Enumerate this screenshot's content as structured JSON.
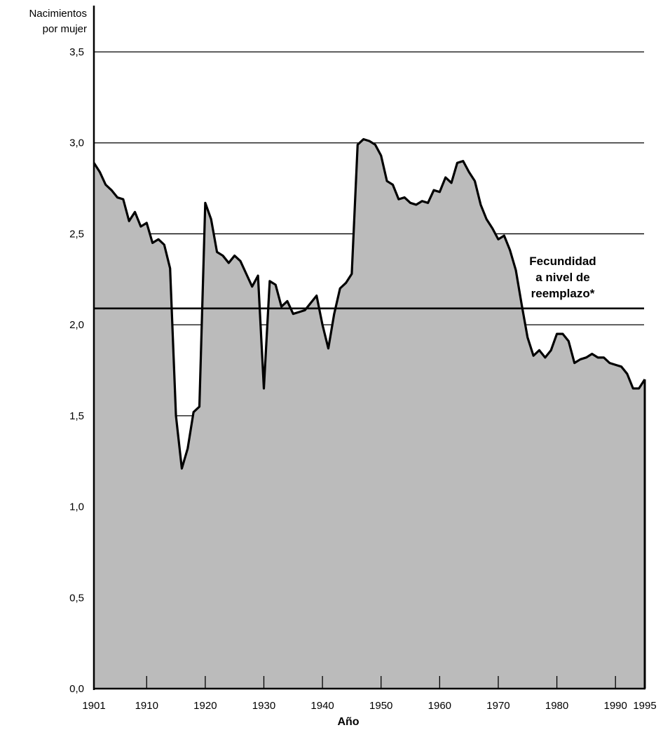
{
  "chart_data": {
    "type": "area",
    "ylabel": [
      "Nacimientos",
      "por mujer"
    ],
    "xlabel": "Año",
    "ylim": [
      0,
      3.5
    ],
    "xlim": [
      1901,
      1995
    ],
    "yticks": [
      "0,0",
      "0,5",
      "1,0",
      "1,5",
      "2,0",
      "2,5",
      "3,0",
      "3,5"
    ],
    "ytick_values": [
      0,
      0.5,
      1.0,
      1.5,
      2.0,
      2.5,
      3.0,
      3.5
    ],
    "xticks": [
      "1901",
      "1910",
      "1920",
      "1930",
      "1940",
      "1950",
      "1960",
      "1970",
      "1980",
      "1990",
      "1995"
    ],
    "xtick_values": [
      1901,
      1910,
      1920,
      1930,
      1940,
      1950,
      1960,
      1970,
      1980,
      1990,
      1995
    ],
    "grid": "horizontal",
    "reference_line": {
      "value": 2.09,
      "label": [
        "Fecundidad",
        "a nivel de",
        "reemplazo*"
      ]
    },
    "series": [
      {
        "x": [
          1901,
          1902,
          1903,
          1904,
          1905,
          1906,
          1907,
          1908,
          1909,
          1910,
          1911,
          1912,
          1913,
          1914,
          1915,
          1916,
          1917,
          1918,
          1919,
          1920,
          1921,
          1922,
          1923,
          1924,
          1925,
          1926,
          1927,
          1928,
          1929,
          1930,
          1931,
          1932,
          1933,
          1934,
          1935,
          1936,
          1937,
          1938,
          1939,
          1940,
          1941,
          1942,
          1943,
          1944,
          1945,
          1946,
          1947,
          1948,
          1949,
          1950,
          1951,
          1952,
          1953,
          1954,
          1955,
          1956,
          1957,
          1958,
          1959,
          1960,
          1961,
          1962,
          1963,
          1964,
          1965,
          1966,
          1967,
          1968,
          1969,
          1970,
          1971,
          1972,
          1973,
          1974,
          1975,
          1976,
          1977,
          1978,
          1979,
          1980,
          1981,
          1982,
          1983,
          1984,
          1985,
          1986,
          1987,
          1988,
          1989,
          1990,
          1991,
          1992,
          1993,
          1994,
          1995
        ],
        "y": [
          2.89,
          2.84,
          2.77,
          2.74,
          2.7,
          2.69,
          2.57,
          2.62,
          2.54,
          2.56,
          2.45,
          2.47,
          2.44,
          2.31,
          1.5,
          1.21,
          1.32,
          1.52,
          1.55,
          2.67,
          2.58,
          2.4,
          2.38,
          2.34,
          2.38,
          2.35,
          2.28,
          2.21,
          2.27,
          1.65,
          2.24,
          2.22,
          2.1,
          2.13,
          2.06,
          2.07,
          2.08,
          2.12,
          2.16,
          2.0,
          1.87,
          2.06,
          2.2,
          2.23,
          2.28,
          2.99,
          3.02,
          3.01,
          2.99,
          2.93,
          2.79,
          2.77,
          2.69,
          2.7,
          2.67,
          2.66,
          2.68,
          2.67,
          2.74,
          2.73,
          2.81,
          2.78,
          2.89,
          2.9,
          2.84,
          2.79,
          2.66,
          2.58,
          2.53,
          2.47,
          2.49,
          2.41,
          2.3,
          2.11,
          1.93,
          1.83,
          1.86,
          1.82,
          1.86,
          1.95,
          1.95,
          1.91,
          1.79,
          1.81,
          1.82,
          1.84,
          1.82,
          1.82,
          1.79,
          1.78,
          1.77,
          1.73,
          1.65,
          1.65,
          1.7
        ]
      }
    ]
  },
  "colors": {
    "fill": "#bbbbbb",
    "line": "#000000",
    "grid": "#000000",
    "background": "#ffffff"
  }
}
